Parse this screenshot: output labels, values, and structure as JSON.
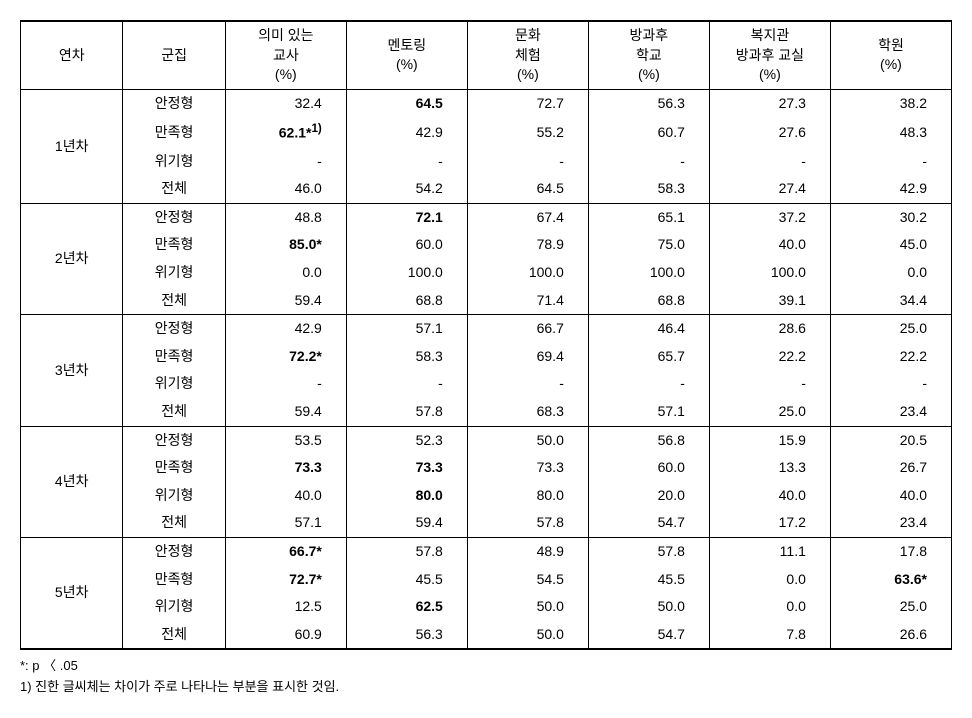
{
  "table": {
    "headers": [
      "연차",
      "군집",
      "의미 있는\n교사\n(%)",
      "멘토링\n(%)",
      "문화\n체험\n(%)",
      "방과후\n학교\n(%)",
      "복지관\n방과후 교실\n(%)",
      "학원\n(%)"
    ],
    "groups": [
      {
        "year": "1년차",
        "rows": [
          {
            "label": "안정형",
            "cells": [
              {
                "v": "32.4"
              },
              {
                "v": "64.5",
                "b": true
              },
              {
                "v": "72.7"
              },
              {
                "v": "56.3"
              },
              {
                "v": "27.3"
              },
              {
                "v": "38.2"
              }
            ]
          },
          {
            "label": "만족형",
            "cells": [
              {
                "v": "62.1*",
                "b": true,
                "sup": "1)"
              },
              {
                "v": "42.9"
              },
              {
                "v": "55.2"
              },
              {
                "v": "60.7"
              },
              {
                "v": "27.6"
              },
              {
                "v": "48.3"
              }
            ]
          },
          {
            "label": "위기형",
            "cells": [
              {
                "v": "-"
              },
              {
                "v": "-"
              },
              {
                "v": "-"
              },
              {
                "v": "-"
              },
              {
                "v": "-"
              },
              {
                "v": "-"
              }
            ]
          },
          {
            "label": "전체",
            "cells": [
              {
                "v": "46.0"
              },
              {
                "v": "54.2"
              },
              {
                "v": "64.5"
              },
              {
                "v": "58.3"
              },
              {
                "v": "27.4"
              },
              {
                "v": "42.9"
              }
            ]
          }
        ]
      },
      {
        "year": "2년차",
        "rows": [
          {
            "label": "안정형",
            "cells": [
              {
                "v": "48.8"
              },
              {
                "v": "72.1",
                "b": true
              },
              {
                "v": "67.4"
              },
              {
                "v": "65.1"
              },
              {
                "v": "37.2"
              },
              {
                "v": "30.2"
              }
            ]
          },
          {
            "label": "만족형",
            "cells": [
              {
                "v": "85.0*",
                "b": true
              },
              {
                "v": "60.0"
              },
              {
                "v": "78.9"
              },
              {
                "v": "75.0"
              },
              {
                "v": "40.0"
              },
              {
                "v": "45.0"
              }
            ]
          },
          {
            "label": "위기형",
            "cells": [
              {
                "v": "0.0"
              },
              {
                "v": "100.0"
              },
              {
                "v": "100.0"
              },
              {
                "v": "100.0"
              },
              {
                "v": "100.0"
              },
              {
                "v": "0.0"
              }
            ]
          },
          {
            "label": "전체",
            "cells": [
              {
                "v": "59.4"
              },
              {
                "v": "68.8"
              },
              {
                "v": "71.4"
              },
              {
                "v": "68.8"
              },
              {
                "v": "39.1"
              },
              {
                "v": "34.4"
              }
            ]
          }
        ]
      },
      {
        "year": "3년차",
        "rows": [
          {
            "label": "안정형",
            "cells": [
              {
                "v": "42.9"
              },
              {
                "v": "57.1"
              },
              {
                "v": "66.7"
              },
              {
                "v": "46.4"
              },
              {
                "v": "28.6"
              },
              {
                "v": "25.0"
              }
            ]
          },
          {
            "label": "만족형",
            "cells": [
              {
                "v": "72.2*",
                "b": true
              },
              {
                "v": "58.3"
              },
              {
                "v": "69.4"
              },
              {
                "v": "65.7"
              },
              {
                "v": "22.2"
              },
              {
                "v": "22.2"
              }
            ]
          },
          {
            "label": "위기형",
            "cells": [
              {
                "v": "-"
              },
              {
                "v": "-"
              },
              {
                "v": "-"
              },
              {
                "v": "-"
              },
              {
                "v": "-"
              },
              {
                "v": "-"
              }
            ]
          },
          {
            "label": "전체",
            "cells": [
              {
                "v": "59.4"
              },
              {
                "v": "57.8"
              },
              {
                "v": "68.3"
              },
              {
                "v": "57.1"
              },
              {
                "v": "25.0"
              },
              {
                "v": "23.4"
              }
            ]
          }
        ]
      },
      {
        "year": "4년차",
        "rows": [
          {
            "label": "안정형",
            "cells": [
              {
                "v": "53.5"
              },
              {
                "v": "52.3"
              },
              {
                "v": "50.0"
              },
              {
                "v": "56.8"
              },
              {
                "v": "15.9"
              },
              {
                "v": "20.5"
              }
            ]
          },
          {
            "label": "만족형",
            "cells": [
              {
                "v": "73.3",
                "b": true
              },
              {
                "v": "73.3",
                "b": true
              },
              {
                "v": "73.3"
              },
              {
                "v": "60.0"
              },
              {
                "v": "13.3"
              },
              {
                "v": "26.7"
              }
            ]
          },
          {
            "label": "위기형",
            "cells": [
              {
                "v": "40.0"
              },
              {
                "v": "80.0",
                "b": true
              },
              {
                "v": "80.0"
              },
              {
                "v": "20.0"
              },
              {
                "v": "40.0"
              },
              {
                "v": "40.0"
              }
            ]
          },
          {
            "label": "전체",
            "cells": [
              {
                "v": "57.1"
              },
              {
                "v": "59.4"
              },
              {
                "v": "57.8"
              },
              {
                "v": "54.7"
              },
              {
                "v": "17.2"
              },
              {
                "v": "23.4"
              }
            ]
          }
        ]
      },
      {
        "year": "5년차",
        "rows": [
          {
            "label": "안정형",
            "cells": [
              {
                "v": "66.7*",
                "b": true
              },
              {
                "v": "57.8"
              },
              {
                "v": "48.9"
              },
              {
                "v": "57.8"
              },
              {
                "v": "11.1"
              },
              {
                "v": "17.8"
              }
            ]
          },
          {
            "label": "만족형",
            "cells": [
              {
                "v": "72.7*",
                "b": true
              },
              {
                "v": "45.5"
              },
              {
                "v": "54.5"
              },
              {
                "v": "45.5"
              },
              {
                "v": "0.0"
              },
              {
                "v": "63.6*",
                "b": true
              }
            ]
          },
          {
            "label": "위기형",
            "cells": [
              {
                "v": "12.5"
              },
              {
                "v": "62.5",
                "b": true
              },
              {
                "v": "50.0"
              },
              {
                "v": "50.0"
              },
              {
                "v": "0.0"
              },
              {
                "v": "25.0"
              }
            ]
          },
          {
            "label": "전체",
            "cells": [
              {
                "v": "60.9"
              },
              {
                "v": "56.3"
              },
              {
                "v": "50.0"
              },
              {
                "v": "54.7"
              },
              {
                "v": "7.8"
              },
              {
                "v": "26.6"
              }
            ]
          }
        ]
      }
    ]
  },
  "footnotes": [
    "*: p 〈 .05",
    "1) 진한 글씨체는 차이가 주로 나타나는 부분을 표시한 것임."
  ]
}
